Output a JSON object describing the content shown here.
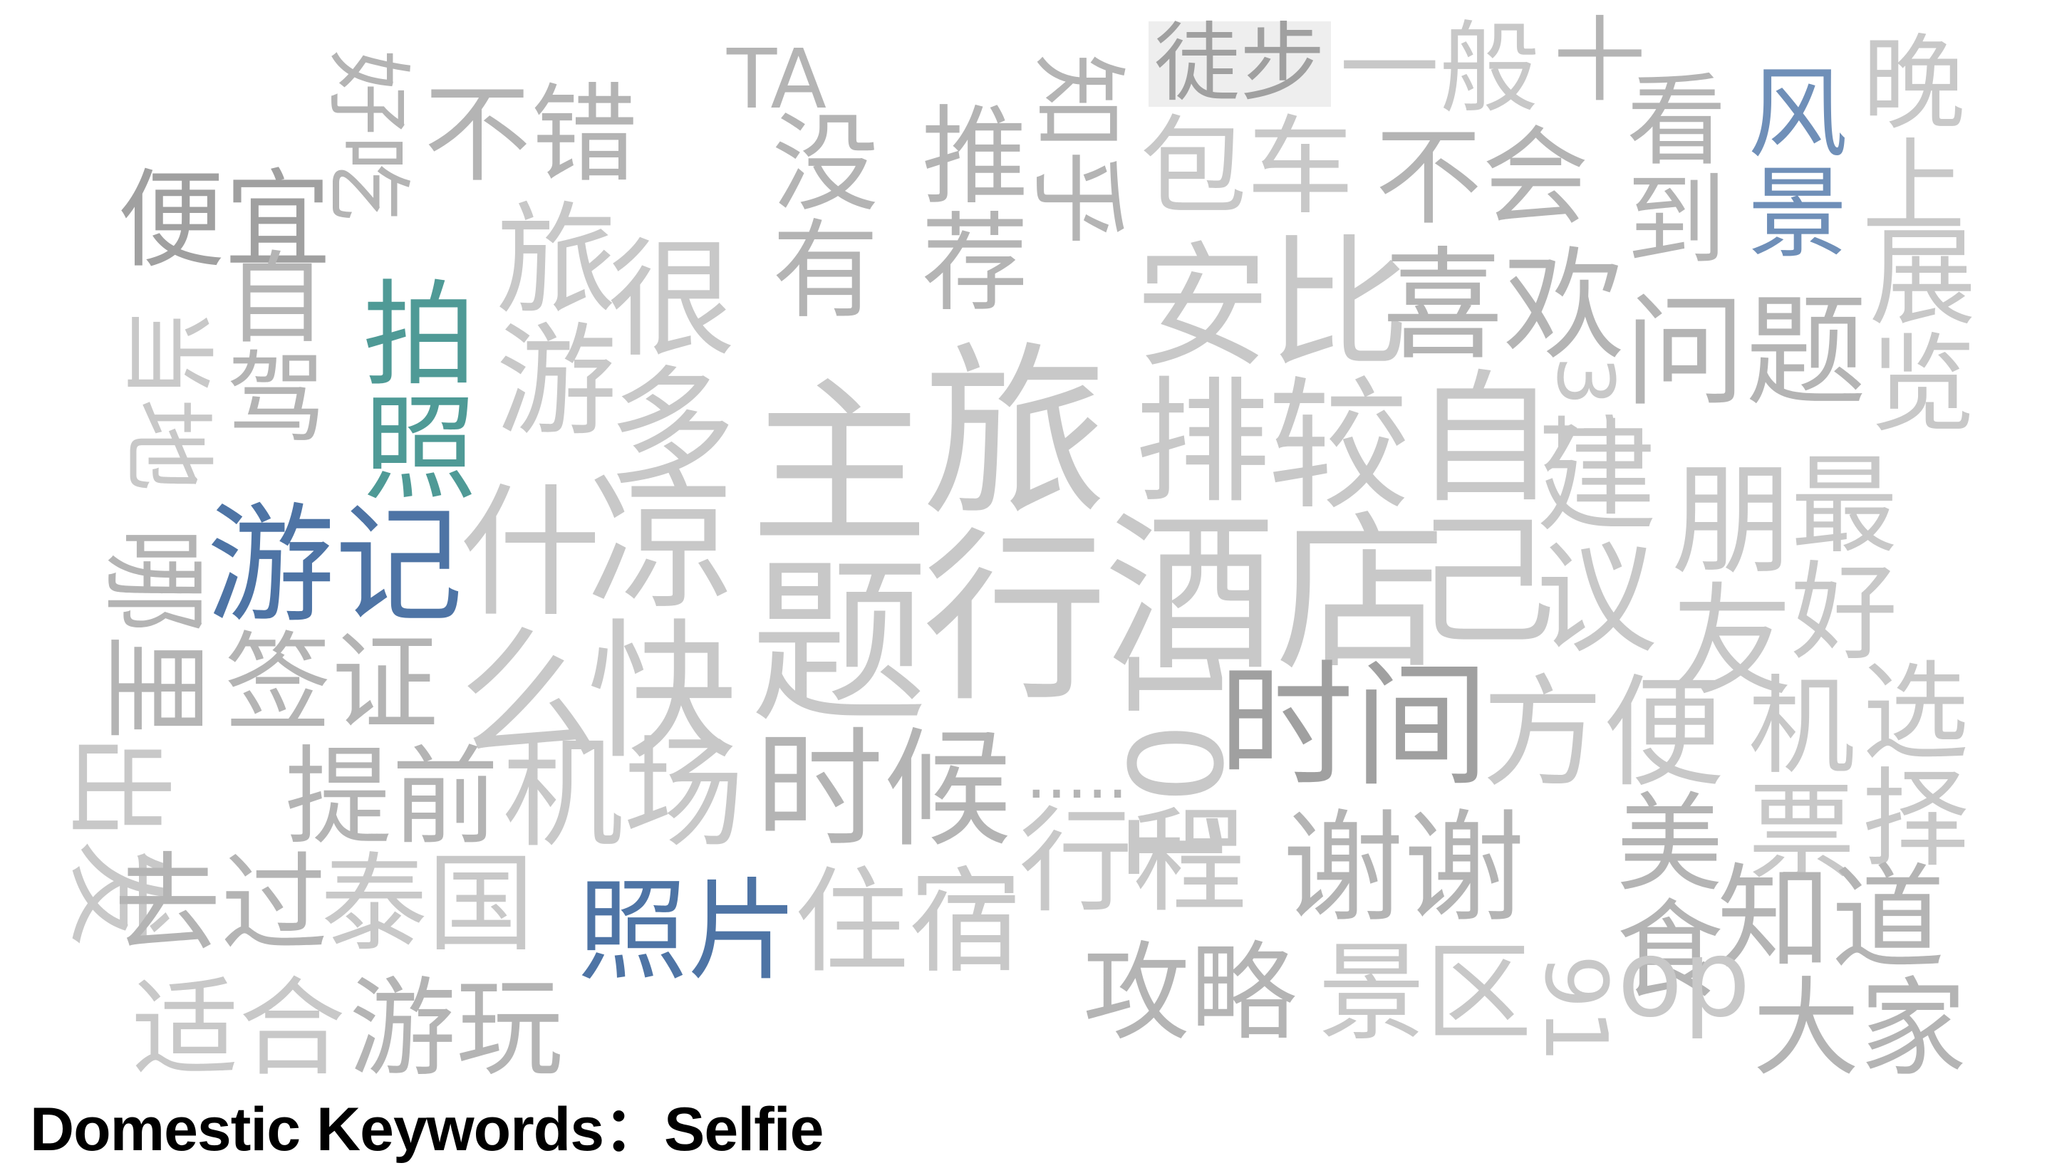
{
  "caption": "Domestic Keywords：Selfie",
  "colors": {
    "gray": "#b4b4b4",
    "dark_gray": "#a0a0a0",
    "light_gray": "#c8c8c8",
    "teal": "#4f9a96",
    "blue": "#4e74a5",
    "light_blue": "#6f8fb8"
  },
  "words": [
    {
      "id": "haochi",
      "text": "好吃"
    },
    {
      "id": "bucuo",
      "text": "不错"
    },
    {
      "id": "ta",
      "text": "TA"
    },
    {
      "id": "meiyou",
      "text": "没有"
    },
    {
      "id": "tuijian",
      "text": "推荐"
    },
    {
      "id": "zhiyou",
      "text": "知乎"
    },
    {
      "id": "tubu",
      "text": "徒步"
    },
    {
      "id": "yiban",
      "text": "一般"
    },
    {
      "id": "shi",
      "text": "十"
    },
    {
      "id": "kandao",
      "text": "看到"
    },
    {
      "id": "fengjing",
      "text": "风景"
    },
    {
      "id": "wanshang",
      "text": "晚上"
    },
    {
      "id": "pianyi",
      "text": "便宜"
    },
    {
      "id": "baoche",
      "text": "包车"
    },
    {
      "id": "buhui",
      "text": "不会"
    },
    {
      "id": "zijia",
      "text": "自驾"
    },
    {
      "id": "paizhao",
      "text": "拍照"
    },
    {
      "id": "lvyou",
      "text": "旅游"
    },
    {
      "id": "henduo",
      "text": "很多"
    },
    {
      "id": "zhuti",
      "text": "主题"
    },
    {
      "id": "lvxing",
      "text": "旅行"
    },
    {
      "id": "anpai",
      "text": "安排"
    },
    {
      "id": "bijiao",
      "text": "比较"
    },
    {
      "id": "xihuan",
      "text": "喜欢"
    },
    {
      "id": "wenti",
      "text": "问题"
    },
    {
      "id": "dangdi",
      "text": "当地"
    },
    {
      "id": "zhanli",
      "text": "展览"
    },
    {
      "id": "youji",
      "text": "游记"
    },
    {
      "id": "shenme",
      "text": "什么"
    },
    {
      "id": "liangkuai",
      "text": "凉快"
    },
    {
      "id": "jiudian",
      "text": "酒店"
    },
    {
      "id": "ziji",
      "text": "自己"
    },
    {
      "id": "jianyi",
      "text": "建议"
    },
    {
      "id": "pengyou",
      "text": "朋友"
    },
    {
      "id": "zuihao",
      "text": "最好"
    },
    {
      "id": "nali",
      "text": "哪里"
    },
    {
      "id": "qianzheng",
      "text": "签证"
    },
    {
      "id": "n101",
      "text": "101"
    },
    {
      "id": "shijian",
      "text": "时间"
    },
    {
      "id": "fangbian",
      "text": "方便"
    },
    {
      "id": "jipiao",
      "text": "机票"
    },
    {
      "id": "xuanze",
      "text": "选择"
    },
    {
      "id": "chufa",
      "text": "出发"
    },
    {
      "id": "tiqian",
      "text": "提前"
    },
    {
      "id": "jichang",
      "text": "机场"
    },
    {
      "id": "shihou",
      "text": "时候"
    },
    {
      "id": "dots",
      "text": "....."
    },
    {
      "id": "xingcheng",
      "text": "行程"
    },
    {
      "id": "xiexie",
      "text": "谢谢"
    },
    {
      "id": "meishi",
      "text": "美食"
    },
    {
      "id": "zhidao",
      "text": "知道"
    },
    {
      "id": "quguo",
      "text": "去过"
    },
    {
      "id": "taiguo",
      "text": "泰国"
    },
    {
      "id": "zhaopian",
      "text": "照片"
    },
    {
      "id": "zhusu",
      "text": "住宿"
    },
    {
      "id": "gonglve",
      "text": "攻略"
    },
    {
      "id": "jingqu",
      "text": "景区"
    },
    {
      "id": "n91",
      "text": "91"
    },
    {
      "id": "do",
      "text": "do"
    },
    {
      "id": "dajia",
      "text": "大家"
    },
    {
      "id": "shihe",
      "text": "适合"
    },
    {
      "id": "youwan",
      "text": "游玩"
    },
    {
      "id": "n31",
      "text": "31"
    }
  ]
}
